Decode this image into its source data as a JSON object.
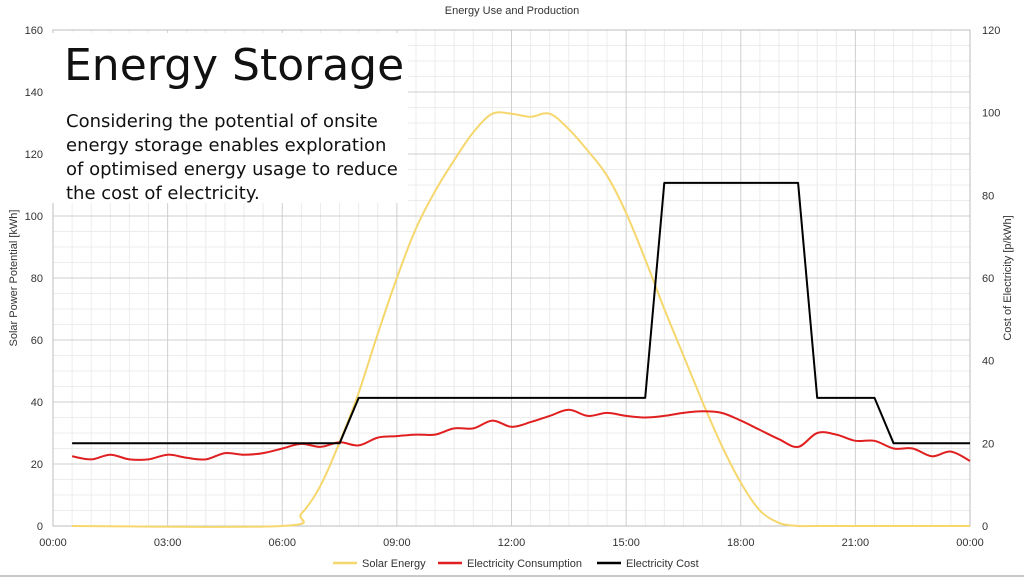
{
  "overlay": {
    "heading": "Energy Storage",
    "body": "Considering the potential of onsite energy storage enables exploration of optimised energy usage to reduce the cost of electricity."
  },
  "chart_data": {
    "type": "line",
    "title": "Energy Use and Production",
    "xlabel": "",
    "ylabel": "Solar Power Potential [kWh]",
    "y2label": "Cost of Electricity [p/kWh]",
    "xlim": [
      0,
      24
    ],
    "ylim": [
      0,
      160
    ],
    "y2lim": [
      0,
      120
    ],
    "x_ticks": [
      0,
      3,
      6,
      9,
      12,
      15,
      18,
      21,
      24
    ],
    "x_tick_labels": [
      "00:00",
      "03:00",
      "06:00",
      "09:00",
      "12:00",
      "15:00",
      "18:00",
      "21:00",
      "00:00"
    ],
    "y_ticks": [
      0,
      20,
      40,
      60,
      80,
      100,
      120,
      140,
      160
    ],
    "y2_ticks": [
      0,
      20,
      40,
      60,
      80,
      100,
      120
    ],
    "grid": true,
    "legend": "bottom-center",
    "series": [
      {
        "name": "Solar Energy",
        "axis": "left",
        "color": "#f5d76e",
        "x": [
          0.5,
          6,
          6.5,
          7,
          7.5,
          8,
          8.5,
          9,
          9.5,
          10,
          10.5,
          11,
          11.5,
          12,
          12.5,
          13,
          13.5,
          14,
          14.5,
          15,
          15.5,
          16,
          16.5,
          17,
          17.5,
          18,
          18.5,
          19,
          19.5,
          20,
          24
        ],
        "values": [
          0,
          0,
          4,
          13,
          27,
          43,
          62,
          80,
          96,
          108,
          118,
          127,
          133,
          133,
          132,
          133,
          128,
          121,
          113,
          101,
          86,
          70,
          55,
          40,
          26,
          14,
          5,
          1,
          0,
          0,
          0
        ]
      },
      {
        "name": "Electricity Consumption",
        "axis": "left",
        "color": "#e02020",
        "x": [
          0.5,
          1,
          1.5,
          2,
          2.5,
          3,
          3.5,
          4,
          4.5,
          5,
          5.5,
          6,
          6.5,
          7,
          7.5,
          8,
          8.5,
          9,
          9.5,
          10,
          10.5,
          11,
          11.5,
          12,
          12.5,
          13,
          13.5,
          14,
          14.5,
          15,
          15.5,
          16,
          16.5,
          17,
          17.5,
          18,
          18.5,
          19,
          19.5,
          20,
          20.5,
          21,
          21.5,
          22,
          22.5,
          23,
          23.5,
          24
        ],
        "values": [
          22.5,
          21.5,
          23,
          21.5,
          21.5,
          23,
          22,
          21.5,
          23.5,
          23,
          23.5,
          25,
          26.5,
          25.5,
          27,
          26,
          28.5,
          29,
          29.5,
          29.5,
          31.5,
          31.5,
          34,
          32,
          33.5,
          35.5,
          37.5,
          35.5,
          36.5,
          35.5,
          35,
          35.5,
          36.5,
          37,
          36.5,
          34,
          31,
          28,
          25.5,
          30,
          29.5,
          27.5,
          27.5,
          25,
          25,
          22.5,
          24,
          21
        ]
      },
      {
        "name": "Electricity Cost",
        "axis": "right",
        "color": "#000000",
        "x": [
          0.5,
          7.5,
          8,
          15.5,
          16,
          19.5,
          20,
          21.5,
          22,
          24
        ],
        "values": [
          20,
          20,
          31,
          31,
          83,
          83,
          31,
          31,
          20,
          20
        ]
      }
    ]
  }
}
